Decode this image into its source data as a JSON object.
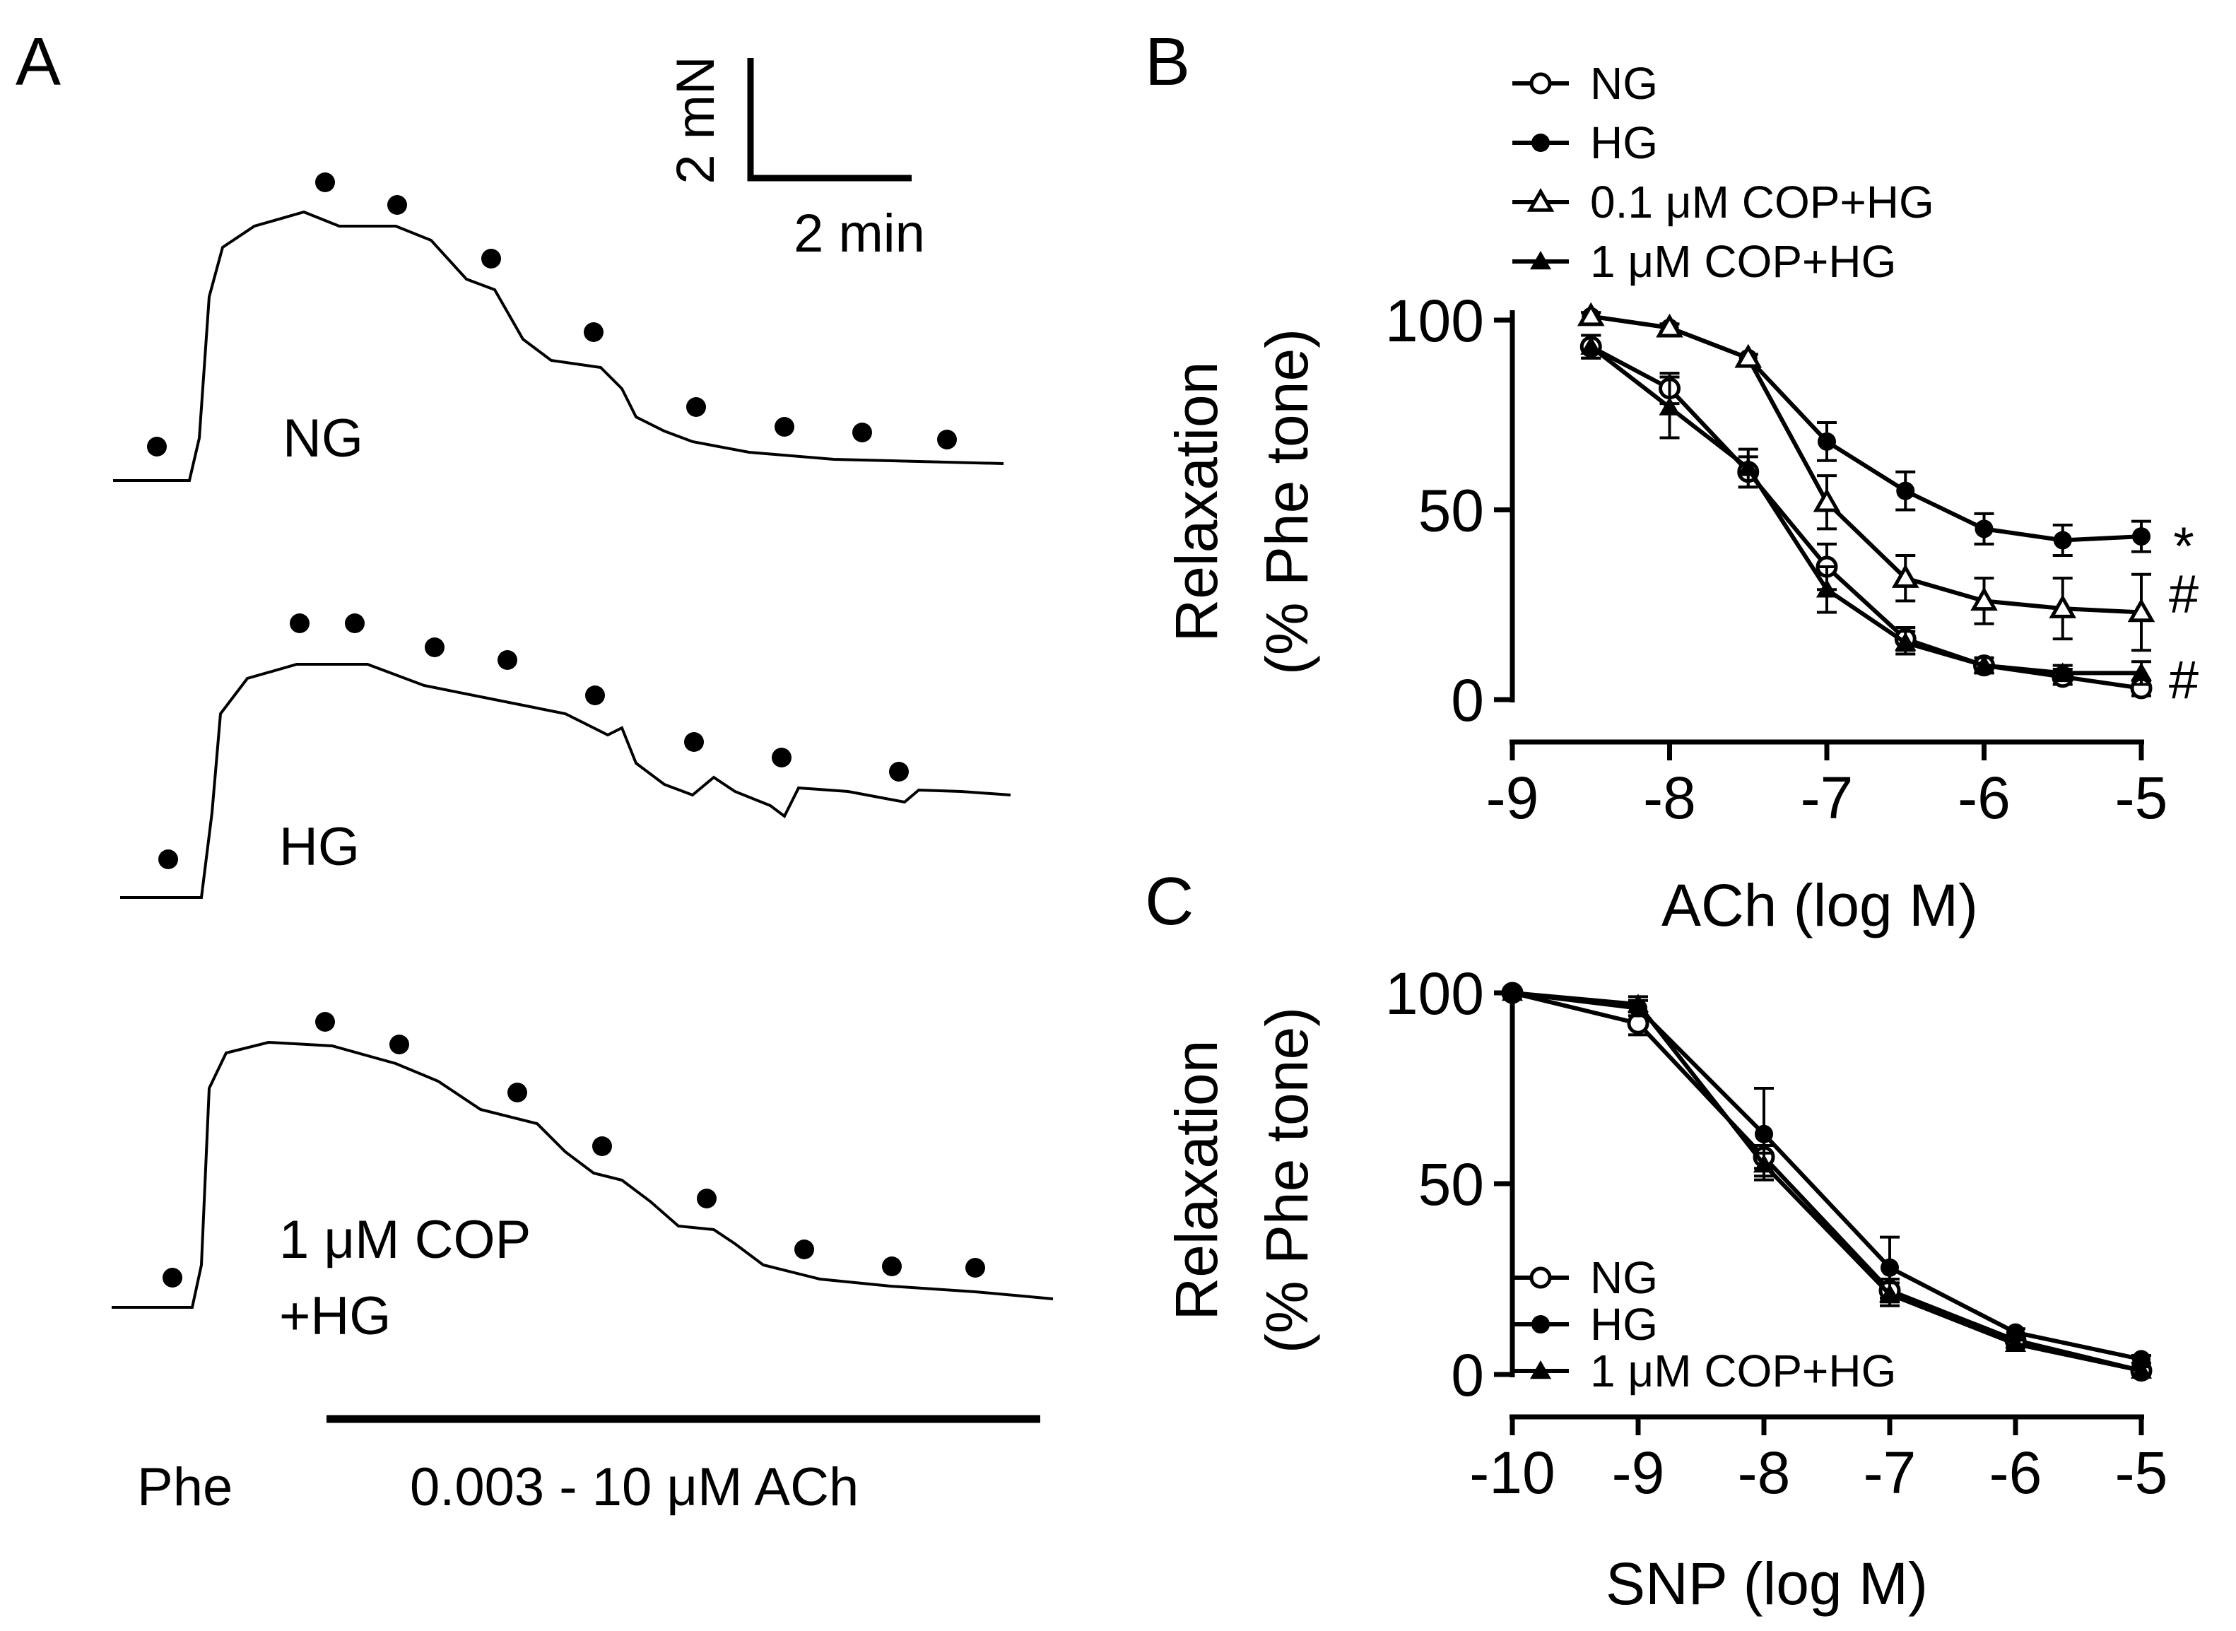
{
  "panels": {
    "A": {
      "label": "A",
      "scale_bar": {
        "force": "2 mN",
        "time": "2 min"
      },
      "traces": [
        {
          "label_lines": [
            "NG"
          ]
        },
        {
          "label_lines": [
            "HG"
          ]
        },
        {
          "label_lines": [
            "1 μM COP",
            "+HG"
          ]
        }
      ],
      "phe_label": "Phe",
      "ach_label": "0.003 - 10 μM ACh"
    }
  },
  "chart_data": [
    {
      "panel": "B",
      "type": "line",
      "xlabel": "ACh (log M)",
      "ylabel": "Relaxation",
      "ylabel2": "(% Phe tone)",
      "xlim": [
        -9,
        -5
      ],
      "ylim": [
        0,
        100
      ],
      "xticks": [
        -9,
        -8,
        -7,
        -6,
        -5
      ],
      "yticks": [
        0,
        50,
        100
      ],
      "legend": "top",
      "series": [
        {
          "name": "NG",
          "marker": "open-circle",
          "x": [
            -8.5,
            -8,
            -7.5,
            -7,
            -6.5,
            -6,
            -5.5,
            -5
          ],
          "y": [
            93,
            82,
            60,
            35,
            16,
            9,
            6,
            3
          ],
          "err": [
            3,
            4,
            4,
            6,
            3,
            2,
            2,
            2
          ]
        },
        {
          "name": "HG",
          "marker": "filled-circle",
          "x": [
            -8.5,
            -8,
            -7.5,
            -7,
            -6.5,
            -6,
            -5.5,
            -5
          ],
          "y": [
            101,
            98,
            90,
            68,
            55,
            45,
            42,
            43
          ],
          "err": [
            1,
            1,
            1,
            5,
            5,
            4,
            4,
            4
          ]
        },
        {
          "name": "0.1 μM COP+HG",
          "marker": "open-triangle",
          "x": [
            -8.5,
            -8,
            -7.5,
            -7,
            -6.5,
            -6,
            -5.5,
            -5
          ],
          "y": [
            101,
            98,
            90,
            52,
            32,
            26,
            24,
            23
          ],
          "err": [
            1,
            1,
            1,
            7,
            6,
            6,
            8,
            10
          ]
        },
        {
          "name": "1 μM COP+HG",
          "marker": "filled-triangle",
          "x": [
            -8.5,
            -8,
            -7.5,
            -7,
            -6.5,
            -6,
            -5.5,
            -5
          ],
          "y": [
            93,
            77,
            61,
            29,
            15,
            9,
            7,
            7
          ],
          "err": [
            3,
            8,
            5,
            6,
            3,
            2,
            2,
            3
          ]
        }
      ],
      "annotations": [
        {
          "text": "*",
          "series": "HG"
        },
        {
          "text": "#",
          "series": "0.1 μM COP+HG"
        },
        {
          "text": "#",
          "series": "1 μM COP+HG"
        }
      ]
    },
    {
      "panel": "C",
      "type": "line",
      "xlabel": "SNP (log M)",
      "ylabel": "Relaxation",
      "ylabel2": "(% Phe tone)",
      "xlim": [
        -10,
        -5
      ],
      "ylim": [
        0,
        100
      ],
      "xticks": [
        -10,
        -9,
        -8,
        -7,
        -6,
        -5
      ],
      "yticks": [
        0,
        50,
        100
      ],
      "legend": "bottom-left",
      "series": [
        {
          "name": "NG",
          "marker": "open-circle",
          "x": [
            -10,
            -9,
            -8,
            -7,
            -6,
            -5
          ],
          "y": [
            100,
            92,
            57,
            22,
            9,
            1
          ],
          "err": [
            0,
            3,
            3,
            3,
            1,
            1
          ]
        },
        {
          "name": "HG",
          "marker": "filled-circle",
          "x": [
            -10,
            -9,
            -8,
            -7,
            -6,
            -5
          ],
          "y": [
            100,
            96,
            63,
            28,
            11,
            4
          ],
          "err": [
            0,
            2,
            12,
            8,
            1,
            1
          ]
        },
        {
          "name": "1 μM COP+HG",
          "marker": "filled-triangle",
          "x": [
            -10,
            -9,
            -8,
            -7,
            -6,
            -5
          ],
          "y": [
            100,
            97,
            55,
            21,
            8,
            1
          ],
          "err": [
            0,
            2,
            3,
            3,
            1,
            1
          ]
        }
      ]
    }
  ]
}
